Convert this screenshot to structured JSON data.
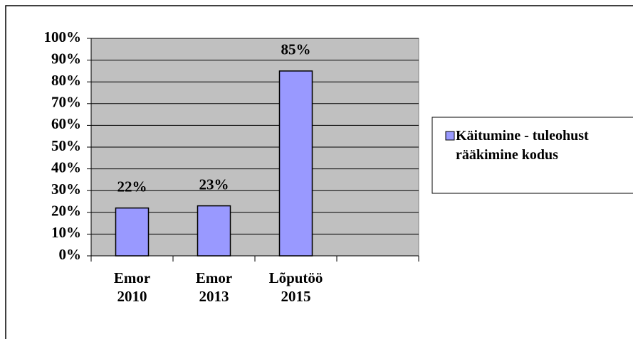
{
  "chart_data": {
    "type": "bar",
    "categories": [
      "Emor 2010",
      "Emor 2013",
      "Lõputöö 2015",
      null
    ],
    "series": [
      {
        "name": "Käitumine - tuleohust rääkimine kodus",
        "color": "#9999ff",
        "values": [
          22,
          23,
          85,
          null
        ],
        "value_labels": [
          "22%",
          "23%",
          "85%",
          null
        ]
      }
    ],
    "ylim": [
      0,
      100
    ],
    "yticks": [
      {
        "value": 0,
        "label": "0%"
      },
      {
        "value": 10,
        "label": "10%"
      },
      {
        "value": 20,
        "label": "20%"
      },
      {
        "value": 30,
        "label": "30%"
      },
      {
        "value": 40,
        "label": "40%"
      },
      {
        "value": 50,
        "label": "50%"
      },
      {
        "value": 60,
        "label": "60%"
      },
      {
        "value": 70,
        "label": "70%"
      },
      {
        "value": 80,
        "label": "80%"
      },
      {
        "value": 90,
        "label": "90%"
      },
      {
        "value": 100,
        "label": "100%"
      }
    ],
    "grid": true,
    "plot_background": "#c0c0c0",
    "legend": "right"
  }
}
